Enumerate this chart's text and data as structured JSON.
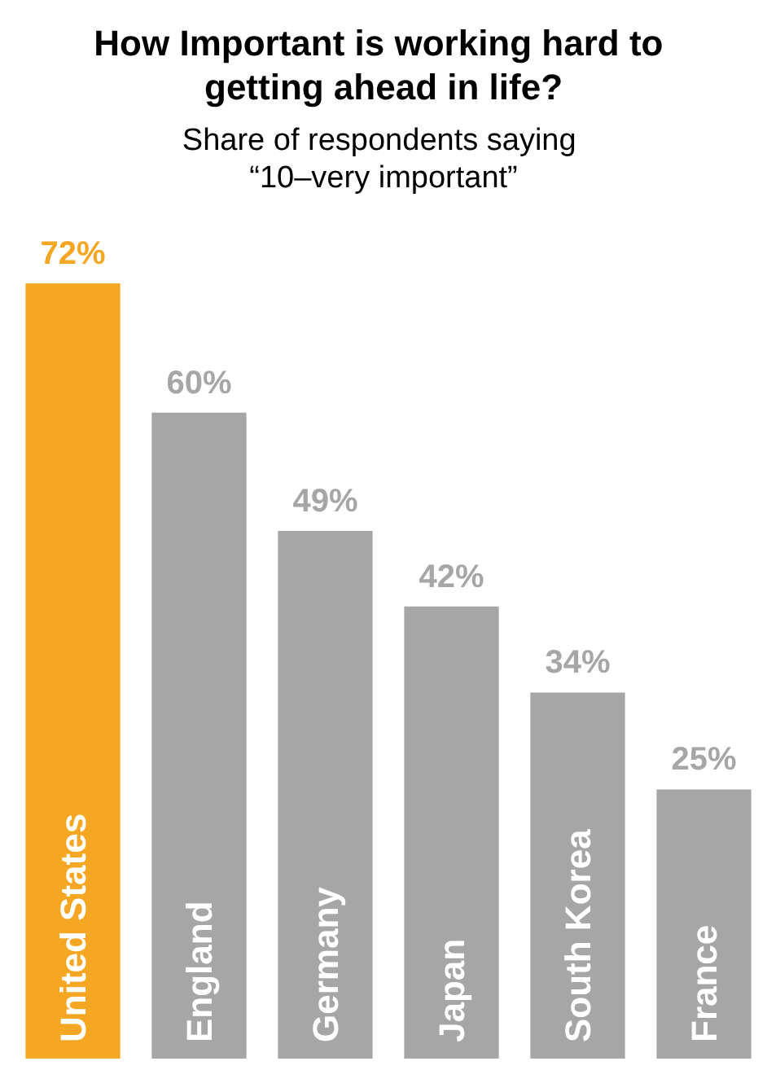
{
  "chart_data": {
    "type": "bar",
    "title": "How Important is working hard to getting ahead in life?",
    "subtitle": "Share of respondents saying “10–very important”",
    "categories": [
      "United States",
      "England",
      "Germany",
      "Japan",
      "South Korea",
      "France"
    ],
    "values": [
      72,
      60,
      49,
      42,
      34,
      25
    ],
    "colors": [
      "#f5a623",
      "#a6a6a6",
      "#a6a6a6",
      "#a6a6a6",
      "#a6a6a6",
      "#a6a6a6"
    ],
    "value_labels": [
      "72%",
      "60%",
      "49%",
      "42%",
      "34%",
      "25%"
    ]
  }
}
